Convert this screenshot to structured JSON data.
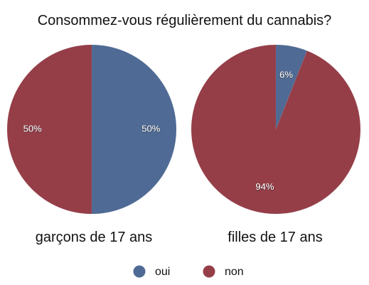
{
  "chart_data": {
    "type": "pie",
    "title": "Consommez-vous régulièrement du cannabis?",
    "legend_position": "bottom-center",
    "categories": [
      "oui",
      "non"
    ],
    "colors": {
      "oui": "#4f6a94",
      "non": "#953e48"
    },
    "pies": [
      {
        "name": "garçons de 17 ans",
        "values": [
          50,
          50
        ],
        "labels": [
          "50%",
          "50%"
        ]
      },
      {
        "name": "filles de 17 ans",
        "values": [
          6,
          94
        ],
        "labels": [
          "6%",
          "94%"
        ]
      }
    ]
  }
}
